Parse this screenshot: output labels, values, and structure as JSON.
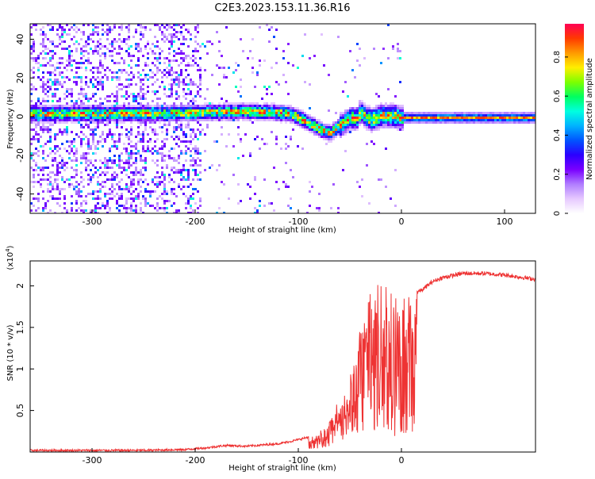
{
  "title": "C2E3.2023.153.11.36.R16",
  "chart_data": [
    {
      "type": "heatmap",
      "xlabel": "Height of straight line (km)",
      "ylabel": "Frequency (Hz)",
      "xlim": [
        -360,
        130
      ],
      "ylim": [
        -50,
        48
      ],
      "xticks": [
        -300,
        -200,
        -100,
        0,
        100
      ],
      "yticks": [
        40,
        20,
        0,
        -20,
        -40
      ],
      "grid": false,
      "colorbar": {
        "label": "Normalized spectral amplitude",
        "range": [
          0,
          0.97
        ],
        "ticks": [
          0.0,
          0.2,
          0.4,
          0.6,
          0.8
        ],
        "colors": [
          "#ffffff",
          "#e6c9ff",
          "#b07dff",
          "#7a00ff",
          "#2b00ff",
          "#0055ff",
          "#00b3ff",
          "#00ffe0",
          "#00ff60",
          "#7dff00",
          "#ffee00",
          "#ff9a00",
          "#ff3a00",
          "#ff0055"
        ]
      },
      "ridge": {
        "x": [
          -360,
          -300,
          -250,
          -200,
          -170,
          -150,
          -130,
          -110,
          -100,
          -90,
          -80,
          -70,
          -60,
          -55,
          -50,
          -45,
          -40,
          -35,
          -30,
          -20,
          -10,
          0,
          50,
          100,
          130
        ],
        "frequency": [
          2,
          2,
          2,
          2.5,
          3,
          3,
          3,
          2,
          0,
          -3,
          -6,
          -8,
          -4,
          -2,
          0,
          -1,
          3,
          0,
          -1,
          1,
          1,
          0,
          0,
          0,
          0
        ]
      }
    },
    {
      "type": "line",
      "xlabel": "Height of straight line (km)",
      "ylabel": "SNR (10 * v/v)",
      "ymultiplier": "(x10",
      "ymultiplier_exp": "4",
      "ymultiplier_close": ")",
      "xlim": [
        -360,
        130
      ],
      "ylim": [
        0,
        2.3
      ],
      "xticks": [
        -300,
        -200,
        -100,
        0
      ],
      "yticks": [
        0.5,
        1.0,
        1.5,
        2.0
      ],
      "color": "#ee3333",
      "series": [
        {
          "x": [
            -360,
            -300,
            -250,
            -210,
            -190,
            -170,
            -150,
            -130,
            -120,
            -110,
            -100,
            -90,
            -80,
            -70,
            -60,
            -50,
            -45,
            -40,
            -35,
            -30,
            -25,
            -20,
            -15,
            -10,
            -5,
            0,
            10,
            20,
            30,
            40,
            60,
            80,
            100,
            130
          ],
          "y": [
            0.02,
            0.02,
            0.02,
            0.03,
            0.05,
            0.08,
            0.07,
            0.09,
            0.1,
            0.12,
            0.15,
            0.18,
            0.2,
            0.35,
            0.6,
            0.9,
            1.3,
            1.5,
            1.8,
            1.95,
            2.0,
            2.05,
            2.0,
            1.95,
            1.9,
            1.85,
            1.9,
            1.95,
            2.05,
            2.1,
            2.15,
            2.15,
            2.13,
            2.08
          ]
        }
      ]
    }
  ]
}
